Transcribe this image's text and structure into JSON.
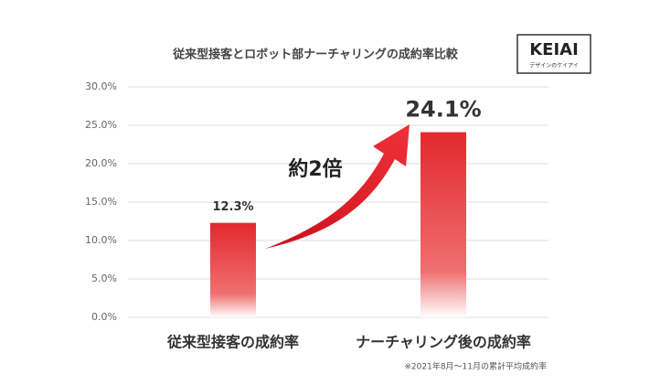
{
  "chart_data": {
    "type": "bar",
    "title": "従来型接客とロボット部ナーチャリングの成約率比較",
    "categories": [
      "従来型接客の成約率",
      "ナーチャリング後の成約率"
    ],
    "values": [
      12.3,
      24.1
    ],
    "value_labels": [
      "12.3%",
      "24.1%"
    ],
    "color": "#e2292f",
    "ylim": [
      0,
      30
    ],
    "yticks": [
      {
        "value": 0,
        "label": "0.0%"
      },
      {
        "value": 5,
        "label": "5.0%"
      },
      {
        "value": 10,
        "label": "10.0%"
      },
      {
        "value": 15,
        "label": "15.0%"
      },
      {
        "value": 20,
        "label": "20.0%"
      },
      {
        "value": 25,
        "label": "25.0%"
      },
      {
        "value": 30,
        "label": "30.0%"
      }
    ],
    "grid": true,
    "annotation": "約2倍",
    "footnote": "※2021年8月～11月の累計平均成約率"
  },
  "logo": {
    "name": "KEIAI",
    "tagline": "デザインのケイアイ"
  }
}
